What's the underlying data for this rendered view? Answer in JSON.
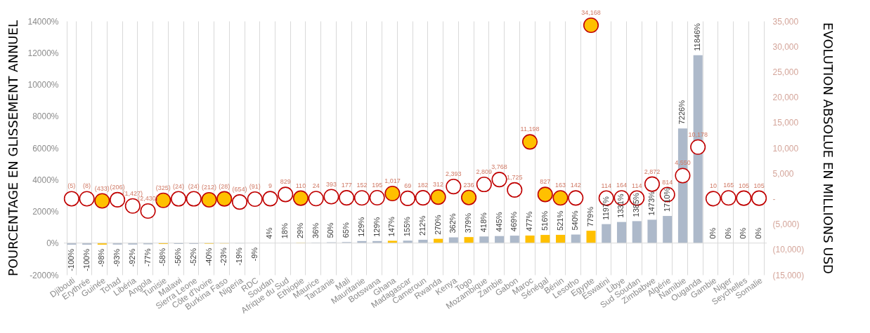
{
  "chart_data": {
    "type": "bar",
    "ylabel": "POURCENTAGE EN GLISSEMENT ANNUEL",
    "y2label": "EVOLUTION ABSOLUE EN MILLIONS USD",
    "categories": [
      "Djibouti",
      "Erythrée",
      "Guinée",
      "Tchad",
      "Libéria",
      "Angola",
      "Tunisie",
      "Malawi",
      "Sierra Leone",
      "Côte d'Ivoire",
      "Burkina Faso",
      "Nigeria",
      "RDC",
      "Soudan",
      "Afrique du Sud",
      "Ethiopie",
      "Maurice",
      "Tanzanie",
      "Mali",
      "Mauritanie",
      "Botswana",
      "Ghana",
      "Madagascar",
      "Cameroun",
      "Rwanda",
      "Kenya",
      "Togo",
      "Mozambique",
      "Zambie",
      "Gabon",
      "Maroc",
      "Sénégal",
      "Bénin",
      "Lesotho",
      "Egypte",
      "Eswatini",
      "Libye",
      "Sud Soudan",
      "Zimbabwe",
      "Algérie",
      "Namibie",
      "Ouganda",
      "Gambie",
      "Niger",
      "Seychelles",
      "Somalie"
    ],
    "series": [
      {
        "values": [
          -100,
          -100,
          -98,
          -93,
          -92,
          -77,
          -58,
          -56,
          -52,
          -40,
          -23,
          -19,
          -9,
          4,
          18,
          29,
          36,
          50,
          65,
          129,
          129,
          147,
          155,
          212,
          270,
          362,
          379,
          418,
          445,
          469,
          477,
          516,
          521,
          540,
          779,
          1197,
          1331,
          1385,
          1473,
          1710,
          7226,
          11846,
          0,
          0,
          0,
          0
        ],
        "value_labels": [
          "-100%",
          "-100%",
          "-98%",
          "-93%",
          "-92%",
          "-77%",
          "-58%",
          "-56%",
          "-52%",
          "-40%",
          "-23%",
          "-19%",
          "-9%",
          "4%",
          "18%",
          "29%",
          "36%",
          "50%",
          "65%",
          "129%",
          "129%",
          "147%",
          "155%",
          "212%",
          "270%",
          "362%",
          "379%",
          "418%",
          "445%",
          "469%",
          "477%",
          "516%",
          "521%",
          "540%",
          "779%",
          "1197%",
          "1331%",
          "1385%",
          "1473%",
          "1710%",
          "7226%",
          "11846%",
          "0%",
          "0%",
          "0%",
          "0%"
        ],
        "colors": [
          "#adb9ca",
          "#adb9ca",
          "#ffc000",
          "#adb9ca",
          "#adb9ca",
          "#adb9ca",
          "#ffc000",
          "#adb9ca",
          "#adb9ca",
          "#ffc000",
          "#ffc000",
          "#adb9ca",
          "#adb9ca",
          "#adb9ca",
          "#adb9ca",
          "#ffc000",
          "#adb9ca",
          "#adb9ca",
          "#adb9ca",
          "#adb9ca",
          "#adb9ca",
          "#ffc000",
          "#adb9ca",
          "#adb9ca",
          "#ffc000",
          "#adb9ca",
          "#ffc000",
          "#adb9ca",
          "#adb9ca",
          "#adb9ca",
          "#ffc000",
          "#ffc000",
          "#ffc000",
          "#adb9ca",
          "#ffc000",
          "#adb9ca",
          "#adb9ca",
          "#adb9ca",
          "#adb9ca",
          "#adb9ca",
          "#adb9ca",
          "#adb9ca",
          "#adb9ca",
          "#adb9ca",
          "#adb9ca",
          "#adb9ca"
        ]
      },
      {
        "type": "scatter",
        "axis": "y2",
        "color": "#c00000",
        "values": [
          -5,
          -8,
          -433,
          -206,
          -1427,
          -2430,
          -325,
          -24,
          -24,
          -212,
          -28,
          -654,
          -91,
          9,
          829,
          110,
          24,
          393,
          177,
          152,
          195,
          1017,
          69,
          182,
          312,
          2393,
          236,
          2809,
          3768,
          1725,
          11198,
          827,
          163,
          142,
          34168,
          114,
          164,
          114,
          2872,
          814,
          4550,
          10178,
          10,
          165,
          105,
          105
        ],
        "value_labels": [
          "(5)",
          "(8)",
          "(433)",
          "(206)",
          "(1,427)",
          "(2,430)",
          "(325)",
          "(24)",
          "(24)",
          "(212)",
          "(28)",
          "(654)",
          "(91)",
          "9",
          "829",
          "110",
          "24",
          "393",
          "177",
          "152",
          "195",
          "1,017",
          "69",
          "182",
          "312",
          "2,393",
          "236",
          "2,809",
          "3,768",
          "1,725",
          "11,198",
          "827",
          "163",
          "142",
          "34,168",
          "114",
          "164",
          "114",
          "2,872",
          "814",
          "4,550",
          "10,178",
          "10",
          "165",
          "105",
          "105"
        ],
        "colors": [
          "#ffffff",
          "#ffffff",
          "#ffc000",
          "#ffffff",
          "#ffffff",
          "#ffffff",
          "#ffc000",
          "#ffffff",
          "#ffffff",
          "#ffc000",
          "#ffc000",
          "#ffffff",
          "#ffffff",
          "#ffffff",
          "#ffffff",
          "#ffc000",
          "#ffffff",
          "#ffffff",
          "#ffffff",
          "#ffffff",
          "#ffffff",
          "#ffc000",
          "#ffffff",
          "#ffffff",
          "#ffc000",
          "#ffffff",
          "#ffc000",
          "#ffffff",
          "#ffffff",
          "#ffffff",
          "#ffc000",
          "#ffc000",
          "#ffc000",
          "#ffffff",
          "#ffc000",
          "#ffffff",
          "#ffffff",
          "#ffffff",
          "#ffffff",
          "#ffffff",
          "#ffffff",
          "#ffffff",
          "#ffffff",
          "#ffffff",
          "#ffffff",
          "#ffffff"
        ]
      }
    ],
    "marker": "circle",
    "grid": "x",
    "ylim": [
      -2000,
      14000
    ],
    "yticks": [
      {
        "value": -2000,
        "label": "-2000%"
      },
      {
        "value": 0,
        "label": "0%"
      },
      {
        "value": 2000,
        "label": "2000%"
      },
      {
        "value": 4000,
        "label": "4000%"
      },
      {
        "value": 6000,
        "label": "6000%"
      },
      {
        "value": 8000,
        "label": "8000%"
      },
      {
        "value": 10000,
        "label": "10000%"
      },
      {
        "value": 12000,
        "label": "12000%"
      },
      {
        "value": 14000,
        "label": "14000%"
      }
    ],
    "y2lim": [
      -15000,
      35000
    ],
    "y2ticks": [
      {
        "value": -15000,
        "label": "(15,000)"
      },
      {
        "value": -10000,
        "label": "(10,000)"
      },
      {
        "value": -5000,
        "label": "(5,000)"
      },
      {
        "value": 0,
        "label": "-"
      },
      {
        "value": 5000,
        "label": "5,000"
      },
      {
        "value": 10000,
        "label": "10,000"
      },
      {
        "value": 15000,
        "label": "15,000"
      },
      {
        "value": 20000,
        "label": "20,000"
      },
      {
        "value": 25000,
        "label": "25,000"
      },
      {
        "value": 30000,
        "label": "30,000"
      },
      {
        "value": 35000,
        "label": "35,000"
      }
    ],
    "ref_lines": [
      {
        "axis": "y",
        "value": 0,
        "color": "#d9d9d9"
      }
    ]
  }
}
